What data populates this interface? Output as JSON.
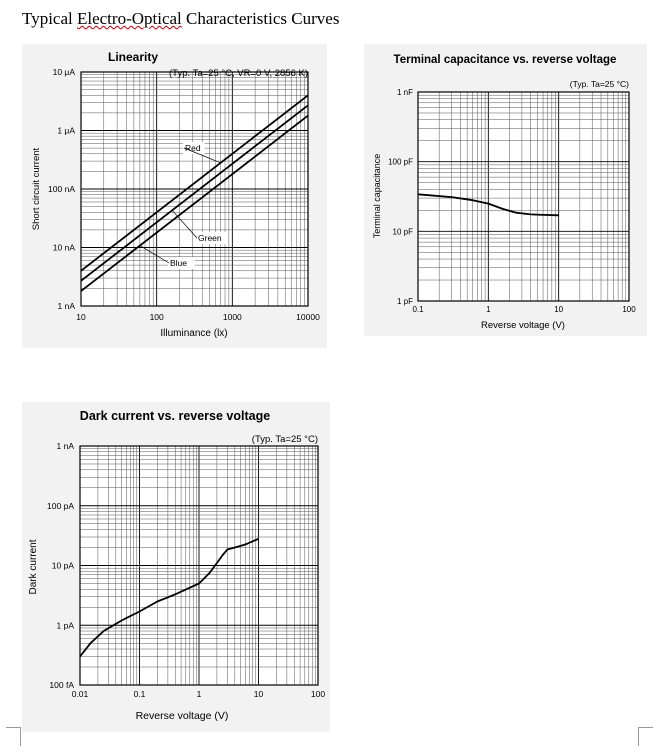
{
  "document": {
    "title_pre": "Typical ",
    "title_underlined": "Electro-Optical",
    "title_post": " Characteristics Curves"
  },
  "chart_data": [
    {
      "id": "linearity",
      "type": "line",
      "title": "Linearity",
      "subtitle": "(Typ. Ta=25 °C, VR=0 V, 2856 K)",
      "xlabel": "Illuminance (lx)",
      "ylabel": "Short circuit current",
      "xscale": "log",
      "yscale": "log",
      "xlim": [
        10,
        10000
      ],
      "ylim": [
        1e-09,
        1e-05
      ],
      "x_ticks": [
        10,
        100,
        1000,
        10000
      ],
      "x_tick_labels": [
        "10",
        "100",
        "1000",
        "10000"
      ],
      "y_ticks": [
        1e-09,
        1e-08,
        1e-07,
        1e-06,
        1e-05
      ],
      "y_tick_labels": [
        "1 nA",
        "10 nA",
        "100 nA",
        "1 μA",
        "10 μA"
      ],
      "grid": true,
      "series": [
        {
          "name": "Red",
          "x": [
            10,
            10000
          ],
          "y": [
            4e-09,
            4e-06
          ]
        },
        {
          "name": "Green",
          "x": [
            10,
            10000
          ],
          "y": [
            2.7e-09,
            2.7e-06
          ]
        },
        {
          "name": "Blue",
          "x": [
            10,
            10000
          ],
          "y": [
            1.8e-09,
            1.8e-06
          ]
        }
      ],
      "annotations": [
        {
          "text": "Red",
          "series": "Red"
        },
        {
          "text": "Green",
          "series": "Green"
        },
        {
          "text": "Blue",
          "series": "Blue"
        }
      ]
    },
    {
      "id": "capacitance",
      "type": "line",
      "title": "Terminal capacitance vs. reverse voltage",
      "subtitle": "(Typ. Ta=25 °C)",
      "xlabel": "Reverse voltage (V)",
      "ylabel": "Terminal capacitance",
      "xscale": "log",
      "yscale": "log",
      "xlim": [
        0.1,
        100
      ],
      "ylim": [
        1e-12,
        1e-09
      ],
      "x_ticks": [
        0.1,
        1,
        10,
        100
      ],
      "x_tick_labels": [
        "0.1",
        "1",
        "10",
        "100"
      ],
      "y_ticks": [
        1e-12,
        1e-11,
        1e-10,
        1e-09
      ],
      "y_tick_labels": [
        "1 pF",
        "10 pF",
        "100 pF",
        "1 nF"
      ],
      "grid": true,
      "series": [
        {
          "name": "",
          "x": [
            0.1,
            0.3,
            0.6,
            1.0,
            1.6,
            2.5,
            4.0,
            6.0,
            10.0
          ],
          "y": [
            3.4e-11,
            3.1e-11,
            2.8e-11,
            2.5e-11,
            2.1e-11,
            1.85e-11,
            1.75e-11,
            1.72e-11,
            1.7e-11
          ]
        }
      ]
    },
    {
      "id": "dark",
      "type": "line",
      "title": "Dark current vs. reverse voltage",
      "subtitle": "(Typ. Ta=25 °C)",
      "xlabel": "Reverse voltage (V)",
      "ylabel": "Dark current",
      "xscale": "log",
      "yscale": "log",
      "xlim": [
        0.01,
        100
      ],
      "ylim": [
        1e-13,
        1e-09
      ],
      "x_ticks": [
        0.01,
        0.1,
        1,
        10,
        100
      ],
      "x_tick_labels": [
        "0.01",
        "0.1",
        "1",
        "10",
        "100"
      ],
      "y_ticks": [
        1e-13,
        1e-12,
        1e-11,
        1e-10,
        1e-09
      ],
      "y_tick_labels": [
        "100 fA",
        "1 pA",
        "10 pA",
        "100 pA",
        "1 nA"
      ],
      "grid": true,
      "series": [
        {
          "name": "",
          "x": [
            0.01,
            0.015,
            0.025,
            0.05,
            0.1,
            0.2,
            0.4,
            1.0,
            1.5,
            2.0,
            2.5,
            3.0,
            4.0,
            6.0,
            10.0
          ],
          "y": [
            3e-13,
            5e-13,
            8e-13,
            1.2e-12,
            1.7e-12,
            2.5e-12,
            3.3e-12,
            5e-12,
            7.5e-12,
            1.1e-11,
            1.5e-11,
            1.85e-11,
            2e-11,
            2.25e-11,
            2.8e-11
          ]
        }
      ]
    }
  ]
}
